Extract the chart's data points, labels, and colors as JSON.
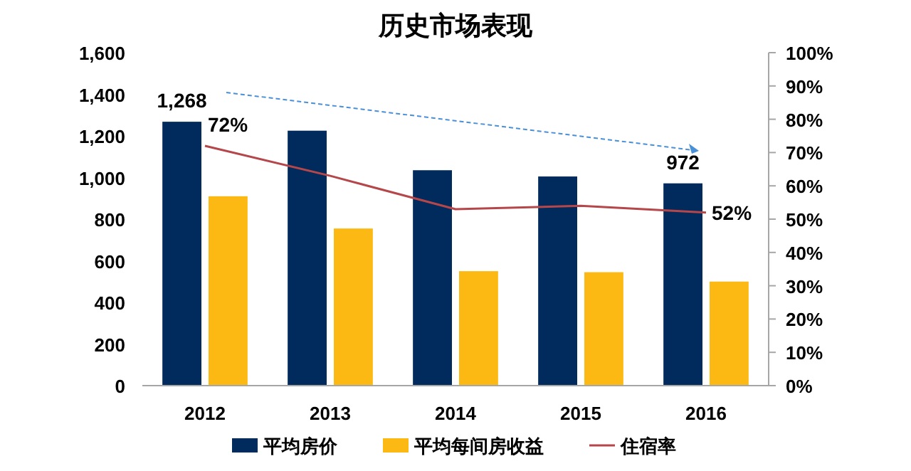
{
  "chart_data": {
    "type": "bar",
    "title": "历史市场表现",
    "categories": [
      "2012",
      "2013",
      "2014",
      "2015",
      "2016"
    ],
    "series": [
      {
        "name": "平均房价",
        "color": "#002b5c",
        "values": [
          1268,
          1225,
          1035,
          1005,
          972
        ],
        "value_labels": [
          "1,268",
          null,
          null,
          null,
          "972"
        ]
      },
      {
        "name": "平均每间房收益",
        "color": "#fdb913",
        "values": [
          910,
          755,
          550,
          545,
          500
        ]
      },
      {
        "name": "住宿率",
        "type": "line",
        "axis": "y2",
        "color": "#b5474b",
        "marker": "none",
        "values": [
          72,
          63,
          53,
          54,
          52
        ],
        "value_labels": [
          "72%",
          null,
          null,
          null,
          "52%"
        ]
      }
    ],
    "ylim": [
      0,
      1600
    ],
    "yticks": [
      0,
      200,
      400,
      600,
      800,
      {
        "value": 1000,
        "label": "1,000"
      },
      {
        "value": 1200,
        "label": "1,200"
      },
      {
        "value": 1400,
        "label": "1,400"
      },
      {
        "value": 1600,
        "label": "1,600"
      }
    ],
    "y2lim": [
      0,
      100
    ],
    "y2ticks": [
      {
        "value": 0,
        "label": "0%"
      },
      {
        "value": 10,
        "label": "10%"
      },
      {
        "value": 20,
        "label": "20%"
      },
      {
        "value": 30,
        "label": "30%"
      },
      {
        "value": 40,
        "label": "40%"
      },
      {
        "value": 50,
        "label": "50%"
      },
      {
        "value": 60,
        "label": "60%"
      },
      {
        "value": 70,
        "label": "70%"
      },
      {
        "value": 80,
        "label": "80%"
      },
      {
        "value": 90,
        "label": "90%"
      },
      {
        "value": 100,
        "label": "100%"
      }
    ],
    "legend": "bottom",
    "grid": false
  }
}
